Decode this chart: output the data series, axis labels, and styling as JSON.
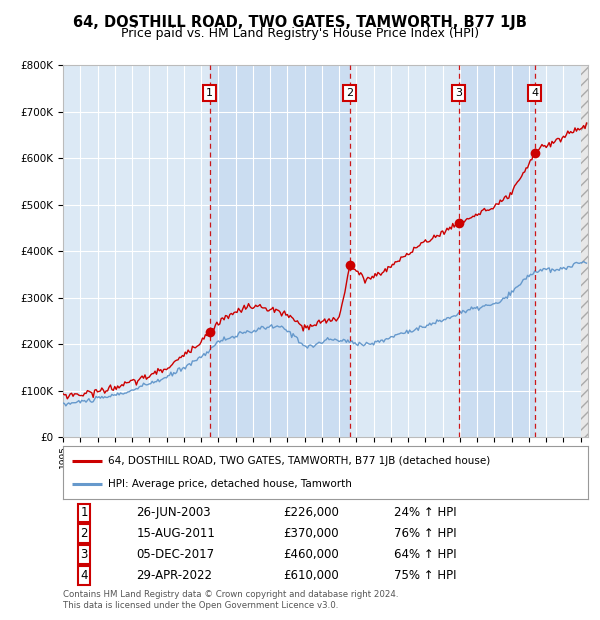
{
  "title": "64, DOSTHILL ROAD, TWO GATES, TAMWORTH, B77 1JB",
  "subtitle": "Price paid vs. HM Land Registry's House Price Index (HPI)",
  "ylim": [
    0,
    800000
  ],
  "yticks": [
    0,
    100000,
    200000,
    300000,
    400000,
    500000,
    600000,
    700000,
    800000
  ],
  "xlim_start": 1995.0,
  "xlim_end": 2025.42,
  "background_color": "#dce9f5",
  "grid_color": "#ffffff",
  "red_line_color": "#cc0000",
  "blue_line_color": "#6699cc",
  "sale_marker_color": "#cc0000",
  "sale_box_color": "#cc0000",
  "title_fontsize": 10.5,
  "subtitle_fontsize": 9,
  "shade_color": "#c5d8f0",
  "sales": [
    {
      "num": 1,
      "year": 2003.49,
      "price": 226000,
      "date": "26-JUN-2003",
      "pct": "24%"
    },
    {
      "num": 2,
      "year": 2011.62,
      "price": 370000,
      "date": "15-AUG-2011",
      "pct": "76%"
    },
    {
      "num": 3,
      "year": 2017.92,
      "price": 460000,
      "date": "05-DEC-2017",
      "pct": "64%"
    },
    {
      "num": 4,
      "year": 2022.33,
      "price": 610000,
      "date": "29-APR-2022",
      "pct": "75%"
    }
  ],
  "legend_entries": [
    {
      "label": "64, DOSTHILL ROAD, TWO GATES, TAMWORTH, B77 1JB (detached house)",
      "color": "#cc0000"
    },
    {
      "label": "HPI: Average price, detached house, Tamworth",
      "color": "#6699cc"
    }
  ],
  "footnote": "Contains HM Land Registry data © Crown copyright and database right 2024.\nThis data is licensed under the Open Government Licence v3.0."
}
